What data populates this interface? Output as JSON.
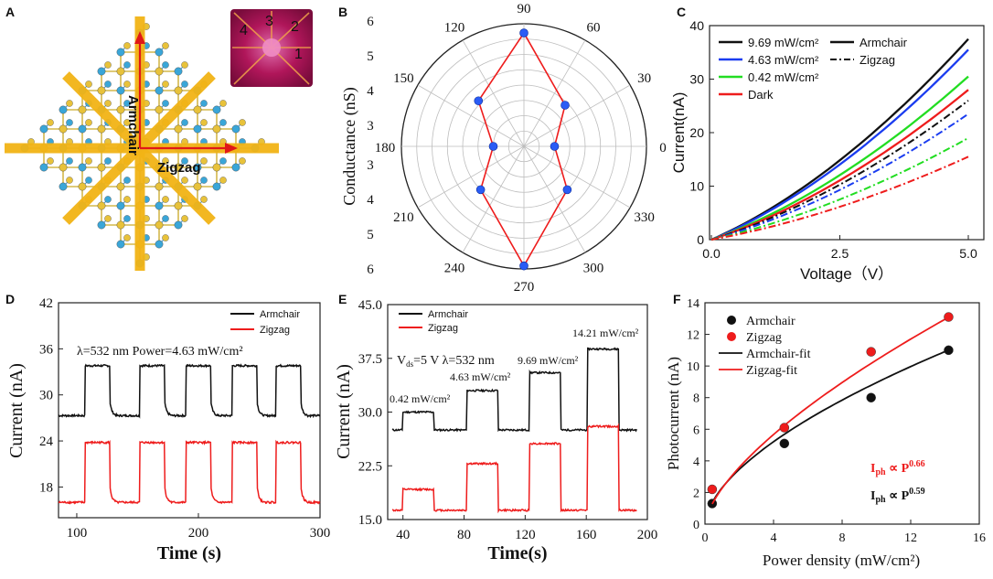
{
  "panel_labels": [
    "A",
    "B",
    "C",
    "D",
    "E",
    "F"
  ],
  "colors": {
    "black": "#111111",
    "blue": "#1a3cf0",
    "green": "#22dd22",
    "red": "#ee1c1c",
    "axis": "#222222",
    "pointBlue": "#2a5cf5",
    "crystalYellow": "#f2b416",
    "atomBlue": "#3aa6d8",
    "atomYellow": "#e8c23a",
    "bond": "#d4b84c",
    "arrowRed": "#e01818",
    "inset": "#b0165a"
  },
  "panelA": {
    "armchair_label": "Armchair",
    "zigzag_label": "Zigzag",
    "inset_numbers": [
      "4",
      "3",
      "2",
      "1"
    ]
  },
  "chart_data": [
    {
      "id": "B",
      "type": "polar-scatter",
      "ylabel": "Conductance (nS)",
      "angle_labels": [
        "90",
        "60",
        "30",
        "0",
        "330",
        "300",
        "270",
        "240",
        "210",
        "180",
        "150",
        "120"
      ],
      "radial_ticks": [
        "6",
        "5",
        "4",
        "3"
      ],
      "radial_range": [
        2,
        6
      ],
      "points": [
        {
          "angle": 0,
          "r": 3.0
        },
        {
          "angle": 45,
          "r": 3.9
        },
        {
          "angle": 90,
          "r": 5.7
        },
        {
          "angle": 135,
          "r": 4.1
        },
        {
          "angle": 180,
          "r": 3.0
        },
        {
          "angle": 225,
          "r": 4.0
        },
        {
          "angle": 270,
          "r": 5.9
        },
        {
          "angle": 315,
          "r": 4.0
        }
      ]
    },
    {
      "id": "C",
      "type": "line",
      "xlabel": "Voltage（V）",
      "ylabel": "Current(nA)",
      "xlim": [
        0,
        5
      ],
      "ylim": [
        0,
        40
      ],
      "xticks": [
        "0.0",
        "2.5",
        "5.0"
      ],
      "yticks": [
        "0",
        "10",
        "20",
        "30",
        "40"
      ],
      "legend_conditions": [
        "9.69 mW/cm²",
        "4.63 mW/cm²",
        "0.42 mW/cm²",
        "Dark"
      ],
      "legend_styles": [
        "Armchair",
        "Zigzag"
      ],
      "series": [
        {
          "name": "9.69 mW/cm² Armchair",
          "style": "solid",
          "color": "black",
          "end": 37.5
        },
        {
          "name": "4.63 mW/cm² Armchair",
          "style": "solid",
          "color": "blue",
          "end": 35.5
        },
        {
          "name": "0.42 mW/cm² Armchair",
          "style": "solid",
          "color": "green",
          "end": 30.5
        },
        {
          "name": "Dark Armchair",
          "style": "solid",
          "color": "red",
          "end": 28.0
        },
        {
          "name": "9.69 mW/cm² Zigzag",
          "style": "dashdot",
          "color": "black",
          "end": 26.0
        },
        {
          "name": "4.63 mW/cm² Zigzag",
          "style": "dashdot",
          "color": "blue",
          "end": 23.5
        },
        {
          "name": "0.42 mW/cm² Zigzag",
          "style": "dashdot",
          "color": "green",
          "end": 19.0
        },
        {
          "name": "Dark Zigzag",
          "style": "dashdot",
          "color": "red",
          "end": 15.5
        }
      ]
    },
    {
      "id": "D",
      "type": "line",
      "xlabel": "Time (s)",
      "ylabel": "Current (nA)",
      "xlim": [
        85,
        300
      ],
      "ylim": [
        14,
        42
      ],
      "xticks": [
        "100",
        "200",
        "300"
      ],
      "yticks": [
        "42",
        "36",
        "30",
        "24",
        "18"
      ],
      "annotation": "λ=532 nm  Power=4.63 mW/cm²",
      "legend": [
        "Armchair",
        "Zigzag"
      ],
      "on_intervals": [
        [
          107,
          127
        ],
        [
          152,
          172
        ],
        [
          190,
          210
        ],
        [
          228,
          248
        ],
        [
          264,
          284
        ]
      ],
      "series": [
        {
          "name": "Armchair",
          "color": "black",
          "low": 27.3,
          "high": 33.8
        },
        {
          "name": "Zigzag",
          "color": "red",
          "low": 16.0,
          "high": 23.8
        }
      ]
    },
    {
      "id": "E",
      "type": "line",
      "xlabel": "Time(s)",
      "ylabel": "Current (nA)",
      "xlim": [
        30,
        200
      ],
      "ylim": [
        15,
        45
      ],
      "xticks": [
        "40",
        "80",
        "120",
        "160",
        "200"
      ],
      "yticks": [
        "45.0",
        "37.5",
        "30.0",
        "22.5",
        "15.0"
      ],
      "annotation_prefix": "V",
      "annotation_sub": "ds",
      "annotation_rest": "=5 V  λ=532 nm",
      "legend": [
        "Armchair",
        "Zigzag"
      ],
      "on_intervals": [
        [
          40,
          60
        ],
        [
          82,
          102
        ],
        [
          123,
          143
        ],
        [
          161,
          181
        ]
      ],
      "power_labels": [
        "0.42 mW/cm²",
        "4.63 mW/cm²",
        "9.69 mW/cm²",
        "14.21 mW/cm²"
      ],
      "series": [
        {
          "name": "Armchair",
          "color": "black",
          "low": 27.5,
          "highs": [
            30.0,
            33.0,
            35.5,
            38.8
          ]
        },
        {
          "name": "Zigzag",
          "color": "red",
          "low": 16.3,
          "highs": [
            19.2,
            22.8,
            25.6,
            28.0
          ]
        }
      ]
    },
    {
      "id": "F",
      "type": "scatter",
      "xlabel": "Power density (mW/cm²)",
      "ylabel": "Photocurrent (nA)",
      "xlim": [
        0,
        16
      ],
      "ylim": [
        0,
        14
      ],
      "xticks": [
        "0",
        "4",
        "8",
        "12",
        "16"
      ],
      "yticks": [
        "0",
        "2",
        "4",
        "6",
        "8",
        "10",
        "12",
        "14"
      ],
      "legend": [
        "Armchair",
        "Zigzag",
        "Armchair-fit",
        "Zigzag-fit"
      ],
      "series": [
        {
          "name": "Armchair",
          "color": "black",
          "x": [
            0.42,
            4.63,
            9.69,
            14.21
          ],
          "y": [
            1.3,
            5.1,
            8.0,
            11.0
          ],
          "fit_a": 2.3,
          "fit_b": 0.59
        },
        {
          "name": "Zigzag",
          "color": "red",
          "x": [
            0.42,
            4.63,
            9.69,
            14.21
          ],
          "y": [
            2.2,
            6.1,
            10.9,
            13.1
          ],
          "fit_a": 2.27,
          "fit_b": 0.66
        }
      ],
      "formula_red": {
        "base": "I",
        "sub": "ph",
        "mid": " ∝ P",
        "sup": "0.66"
      },
      "formula_black": {
        "base": "I",
        "sub": "ph",
        "mid": " ∝ P",
        "sup": "0.59"
      }
    }
  ]
}
